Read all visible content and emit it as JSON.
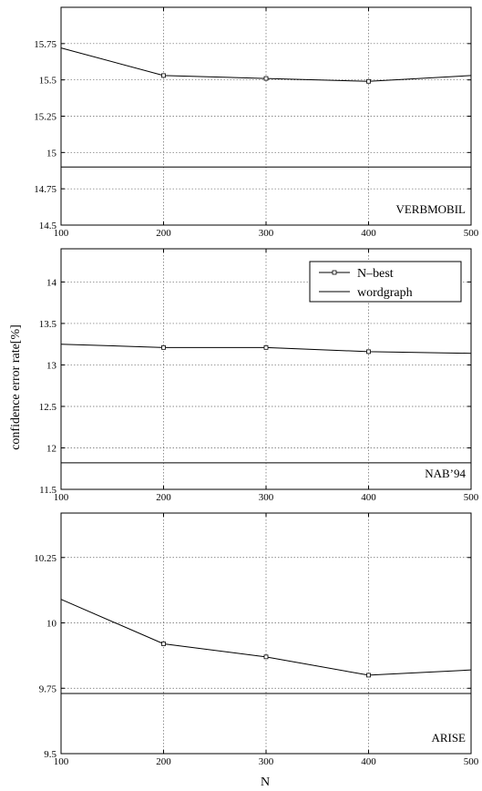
{
  "chart_data": [
    {
      "type": "line",
      "x": [
        100,
        200,
        300,
        400,
        500
      ],
      "series": [
        {
          "name": "N–best",
          "values": [
            15.72,
            15.53,
            15.51,
            15.49,
            15.53
          ]
        },
        {
          "name": "wordgraph",
          "values": [
            14.9,
            14.9,
            14.9,
            14.9,
            14.9
          ]
        }
      ],
      "xlim": [
        100,
        500
      ],
      "ylim": [
        14.5,
        16.0
      ],
      "xticks": [
        "100",
        "200",
        "300",
        "400",
        "500"
      ],
      "yticks": [
        "14.5",
        "14.75",
        "15",
        "15.25",
        "15.5",
        "15.75"
      ],
      "ytick_values": [
        14.5,
        14.75,
        15,
        15.25,
        15.5,
        15.75
      ],
      "grid": true,
      "panel_label": "VERBMOBIL"
    },
    {
      "type": "line",
      "x": [
        100,
        200,
        300,
        400,
        500
      ],
      "series": [
        {
          "name": "N–best",
          "values": [
            13.25,
            13.21,
            13.21,
            13.16,
            13.14
          ]
        },
        {
          "name": "wordgraph",
          "values": [
            11.82,
            11.82,
            11.82,
            11.82,
            11.82
          ]
        }
      ],
      "xlim": [
        100,
        500
      ],
      "ylim": [
        11.5,
        14.4
      ],
      "xticks": [
        "100",
        "200",
        "300",
        "400",
        "500"
      ],
      "yticks": [
        "11.5",
        "12",
        "12.5",
        "13",
        "13.5",
        "14"
      ],
      "ytick_values": [
        11.5,
        12,
        12.5,
        13,
        13.5,
        14
      ],
      "grid": true,
      "panel_label": "NAB’94",
      "legend": {
        "position": "top-right",
        "entries": [
          "N–best",
          "wordgraph"
        ]
      }
    },
    {
      "type": "line",
      "x": [
        100,
        200,
        300,
        400,
        500
      ],
      "series": [
        {
          "name": "N–best",
          "values": [
            10.09,
            9.92,
            9.87,
            9.8,
            9.82
          ]
        },
        {
          "name": "wordgraph",
          "values": [
            9.73,
            9.73,
            9.73,
            9.73,
            9.73
          ]
        }
      ],
      "xlim": [
        100,
        500
      ],
      "ylim": [
        9.5,
        10.42
      ],
      "xticks": [
        "100",
        "200",
        "300",
        "400",
        "500"
      ],
      "yticks": [
        "9.5",
        "9.75",
        "10",
        "10.25"
      ],
      "ytick_values": [
        9.5,
        9.75,
        10,
        10.25
      ],
      "grid": true,
      "panel_label": "ARISE"
    }
  ],
  "ylabel": "confidence error rate[%]",
  "xlabel": "N"
}
